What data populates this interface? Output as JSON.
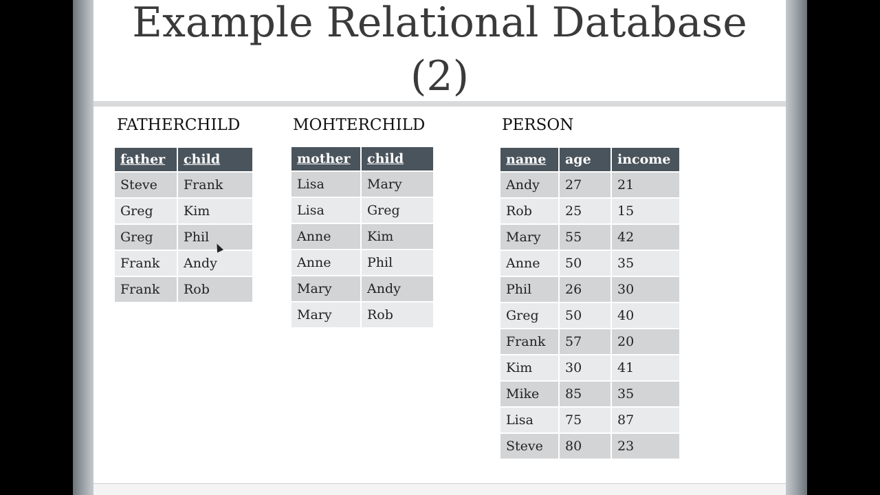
{
  "slide": {
    "title_line1": "Example Relational Database",
    "title_line2": "(2)"
  },
  "tables": {
    "fatherchild": {
      "label": "FATHERCHILD",
      "headers": [
        "father",
        "child"
      ],
      "rows": [
        [
          "Steve",
          "Frank"
        ],
        [
          "Greg",
          "Kim"
        ],
        [
          "Greg",
          "Phil"
        ],
        [
          "Frank",
          "Andy"
        ],
        [
          "Frank",
          "Rob"
        ]
      ]
    },
    "motherchild": {
      "label": "MOHTERCHILD",
      "headers": [
        "mother",
        "child"
      ],
      "rows": [
        [
          "Lisa",
          "Mary"
        ],
        [
          "Lisa",
          "Greg"
        ],
        [
          "Anne",
          "Kim"
        ],
        [
          "Anne",
          "Phil"
        ],
        [
          "Mary",
          "Andy"
        ],
        [
          "Mary",
          "Rob"
        ]
      ]
    },
    "person": {
      "label": "PERSON",
      "headers": [
        "name",
        "age",
        "income"
      ],
      "rows": [
        [
          "Andy",
          "27",
          "21"
        ],
        [
          "Rob",
          "25",
          "15"
        ],
        [
          "Mary",
          "55",
          "42"
        ],
        [
          "Anne",
          "50",
          "35"
        ],
        [
          "Phil",
          "26",
          "30"
        ],
        [
          "Greg",
          "50",
          "40"
        ],
        [
          "Frank",
          "57",
          "20"
        ],
        [
          "Kim",
          "30",
          "41"
        ],
        [
          "Mike",
          "85",
          "35"
        ],
        [
          "Lisa",
          "75",
          "87"
        ],
        [
          "Steve",
          "80",
          "23"
        ]
      ]
    }
  }
}
